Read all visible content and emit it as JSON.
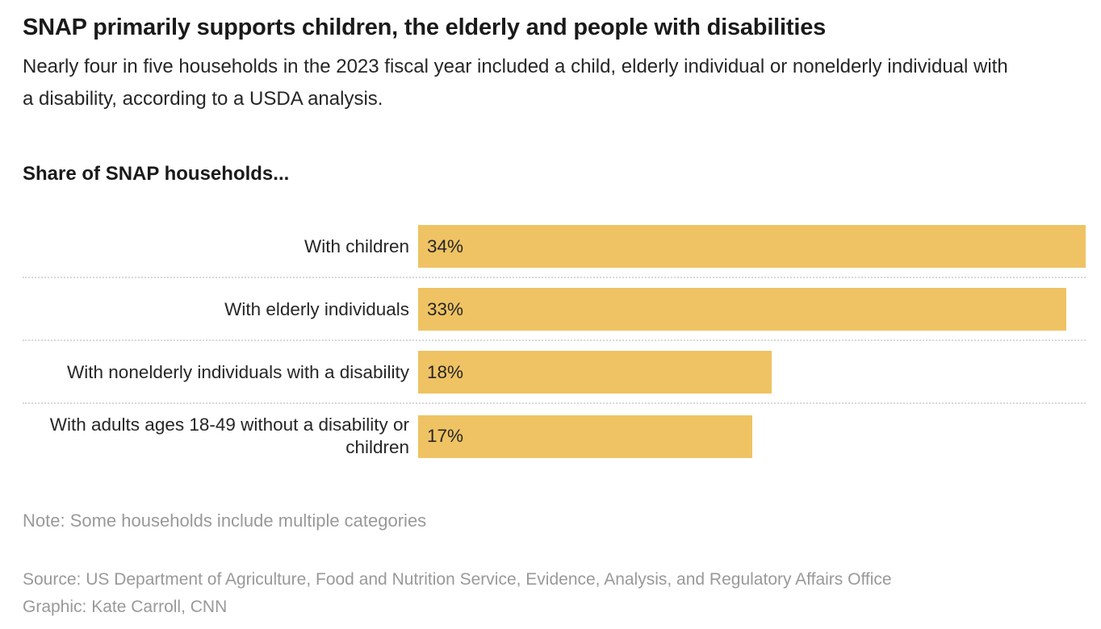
{
  "header": {
    "title": "SNAP primarily supports children, the elderly and people with disabilities",
    "subtitle": "Nearly four in five households in the 2023 fiscal year included a child, elderly individual or nonelderly individual with a disability, according to a USDA analysis."
  },
  "chart_data": {
    "type": "bar",
    "orientation": "horizontal",
    "title": "Share of SNAP households...",
    "categories": [
      "With children",
      "With elderly individuals",
      "With nonelderly individuals with a disability",
      "With adults ages 18-49 without a disability or children"
    ],
    "values": [
      34,
      33,
      18,
      17
    ],
    "data_labels": [
      "34%",
      "33%",
      "18%",
      "17%"
    ],
    "unit": "%",
    "xlim": [
      0,
      34
    ],
    "grid": false,
    "legend": false,
    "row_separator": "dotted"
  },
  "footer": {
    "note": "Note: Some households include multiple categories",
    "source": "Source: US Department of Agriculture, Food and Nutrition Service, Evidence, Analysis, and Regulatory Affairs Office",
    "credit": "Graphic: Kate Carroll, CNN"
  },
  "colors": {
    "bar": "#efc363",
    "title_text": "#1a1a1a",
    "body_text": "#262626",
    "footer_text": "#999999",
    "separator": "#d8d8d8",
    "background": "#ffffff"
  }
}
